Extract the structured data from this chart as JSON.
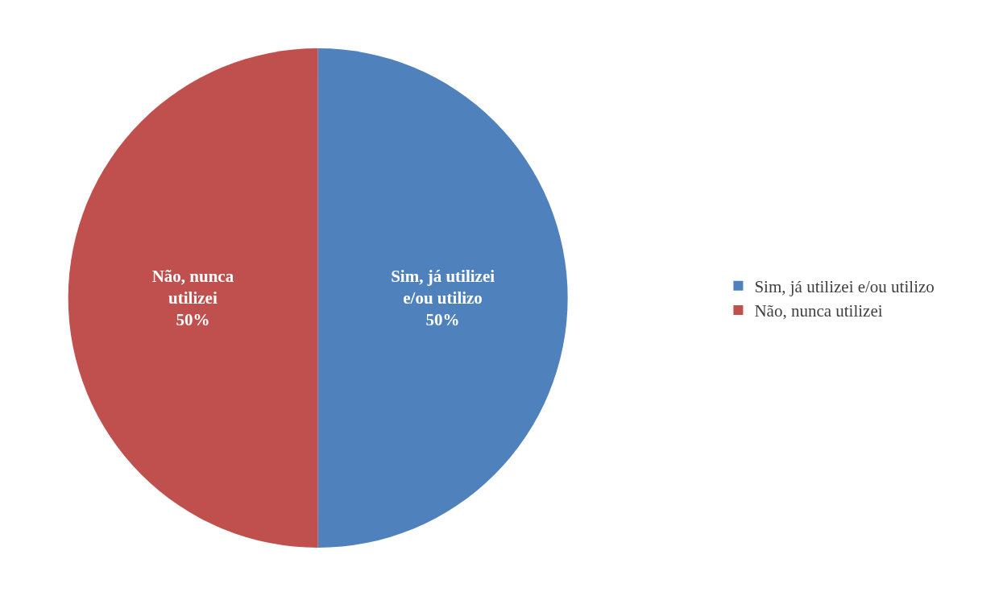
{
  "chart_data": {
    "type": "pie",
    "categories": [
      "Sim, já utilizei e/ou utilizo",
      "Não, nunca utilizei"
    ],
    "values": [
      50,
      50
    ],
    "colors": [
      "#4f81bd",
      "#c0504d"
    ],
    "value_labels": [
      "50%",
      "50%"
    ],
    "legend": "right"
  }
}
